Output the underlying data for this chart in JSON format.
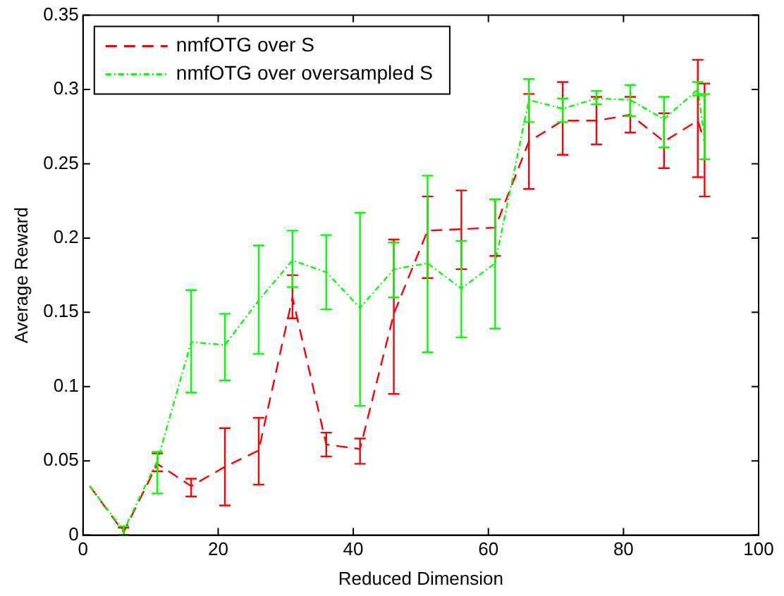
{
  "chart_data": {
    "type": "line",
    "xlabel": "Reduced Dimension",
    "ylabel": "Average Reward",
    "x": [
      1,
      6,
      11,
      16,
      21,
      26,
      31,
      36,
      41,
      46,
      51,
      56,
      61,
      66,
      71,
      76,
      81,
      86,
      91,
      92
    ],
    "series": [
      {
        "name": "nmfOTG over S",
        "color": "#ff0000",
        "line_style": "dashed",
        "values": [
          0.033,
          0.002,
          0.048,
          0.033,
          0.046,
          0.057,
          0.16,
          0.061,
          0.058,
          0.149,
          0.205,
          0.206,
          0.207,
          0.265,
          0.279,
          0.279,
          0.283,
          0.265,
          0.279,
          0.265
        ],
        "errors": [
          null,
          [
            0,
            0.005
          ],
          [
            0.043,
            0.055
          ],
          [
            0.026,
            0.038
          ],
          [
            0.02,
            0.072
          ],
          [
            0.034,
            0.079
          ],
          [
            0.146,
            0.175
          ],
          [
            0.053,
            0.069
          ],
          [
            0.048,
            0.065
          ],
          [
            0.095,
            0.199
          ],
          [
            0.173,
            0.228
          ],
          [
            0.179,
            0.232
          ],
          [
            0.188,
            0.226
          ],
          [
            0.233,
            0.297
          ],
          [
            0.256,
            0.305
          ],
          [
            0.263,
            0.295
          ],
          [
            0.271,
            0.295
          ],
          [
            0.247,
            0.284
          ],
          [
            0.241,
            0.32
          ],
          [
            0.228,
            0.304
          ]
        ]
      },
      {
        "name": "nmfOTG over oversampled S",
        "color": "#00ff00",
        "line_style": "dotted",
        "values": [
          0.033,
          0.003,
          0.05,
          0.13,
          0.128,
          0.158,
          0.185,
          0.177,
          0.153,
          0.179,
          0.183,
          0.166,
          0.183,
          0.293,
          0.287,
          0.294,
          0.293,
          0.28,
          0.3,
          0.267
        ],
        "errors": [
          null,
          [
            0,
            0.006
          ],
          [
            0.028,
            0.056
          ],
          [
            0.096,
            0.165
          ],
          [
            0.104,
            0.149
          ],
          [
            0.122,
            0.195
          ],
          [
            0.167,
            0.205
          ],
          [
            0.152,
            0.202
          ],
          [
            0.087,
            0.217
          ],
          [
            0.16,
            0.197
          ],
          [
            0.123,
            0.242
          ],
          [
            0.133,
            0.198
          ],
          [
            0.139,
            0.226
          ],
          [
            0.278,
            0.307
          ],
          [
            0.278,
            0.294
          ],
          [
            0.29,
            0.299
          ],
          [
            0.282,
            0.303
          ],
          [
            0.261,
            0.295
          ],
          [
            0.296,
            0.305
          ],
          [
            0.253,
            0.297
          ]
        ]
      }
    ],
    "xlim": [
      0,
      100
    ],
    "xticks": [
      0,
      20,
      40,
      60,
      80,
      100
    ],
    "ylim": [
      0,
      0.35
    ],
    "yticks": [
      0,
      0.05,
      0.1,
      0.15,
      0.2,
      0.25,
      0.3,
      0.35
    ],
    "grid": false,
    "legend": "top left",
    "marker": "none"
  }
}
